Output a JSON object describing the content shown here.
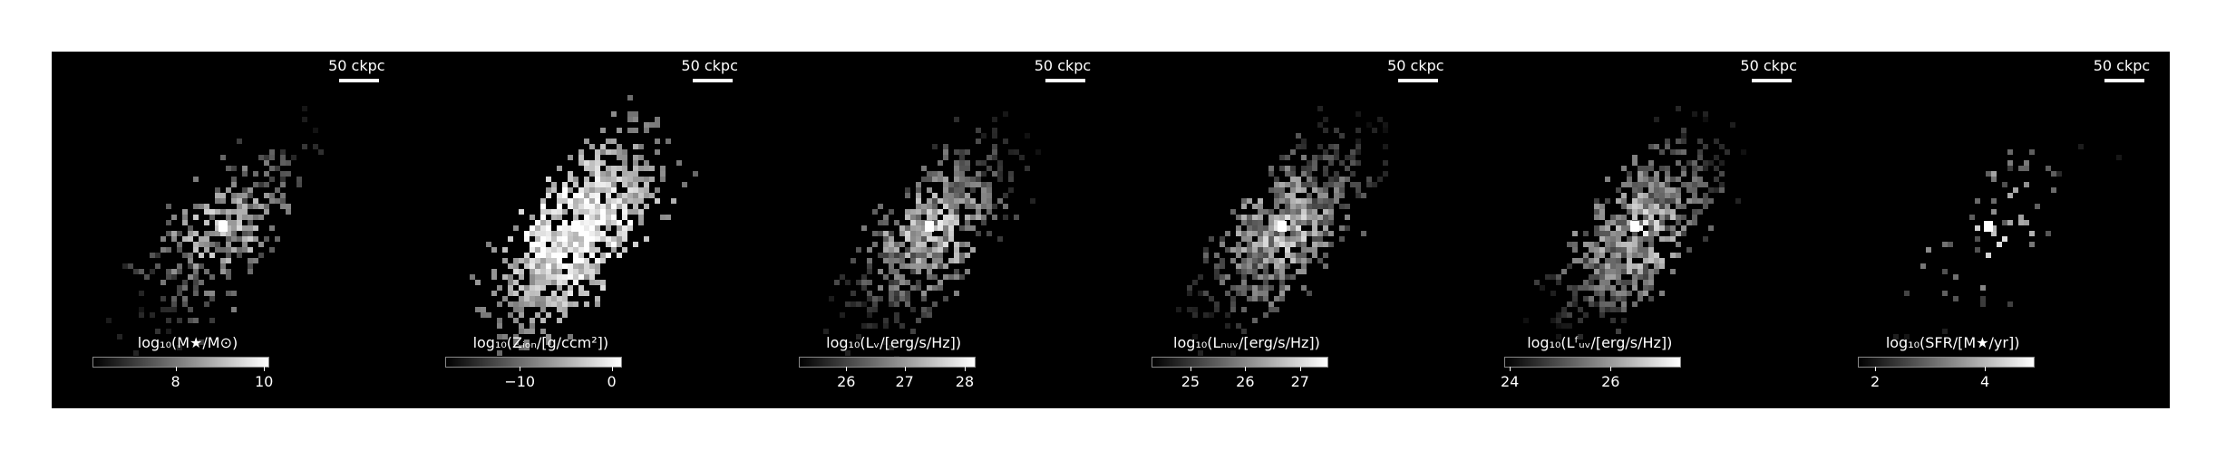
{
  "scalebar_text": "50 ckpc",
  "panels": [
    {
      "colorbar_label": "log₁₀(M★/M⊙)",
      "ticks": [
        "8",
        "10"
      ],
      "tick_pos": [
        0.47,
        0.97
      ],
      "density": 0.35
    },
    {
      "colorbar_label": "log₁₀(Zᵢₒₙ/[g/ccm²])",
      "ticks": [
        "−10",
        "0"
      ],
      "tick_pos": [
        0.42,
        0.94
      ],
      "density": 1.0
    },
    {
      "colorbar_label": "log₁₀(Lᵥ/[erg/s/Hz])",
      "ticks": [
        "26",
        "27",
        "28"
      ],
      "tick_pos": [
        0.27,
        0.6,
        0.94
      ],
      "density": 0.65
    },
    {
      "colorbar_label": "log₁₀(Lₙᵤᵥ/[erg/s/Hz])",
      "ticks": [
        "25",
        "26",
        "27"
      ],
      "tick_pos": [
        0.22,
        0.53,
        0.84
      ],
      "density": 0.75
    },
    {
      "colorbar_label": "log₁₀(Lᶠᵤᵥ/[erg/s/Hz])",
      "ticks": [
        "24",
        "26"
      ],
      "tick_pos": [
        0.03,
        0.6
      ],
      "density": 0.75
    },
    {
      "colorbar_label": "log₁₀(SFR/[M★/yr])",
      "ticks": [
        "2",
        "4"
      ],
      "tick_pos": [
        0.1,
        0.72
      ],
      "density": 0.08
    }
  ]
}
